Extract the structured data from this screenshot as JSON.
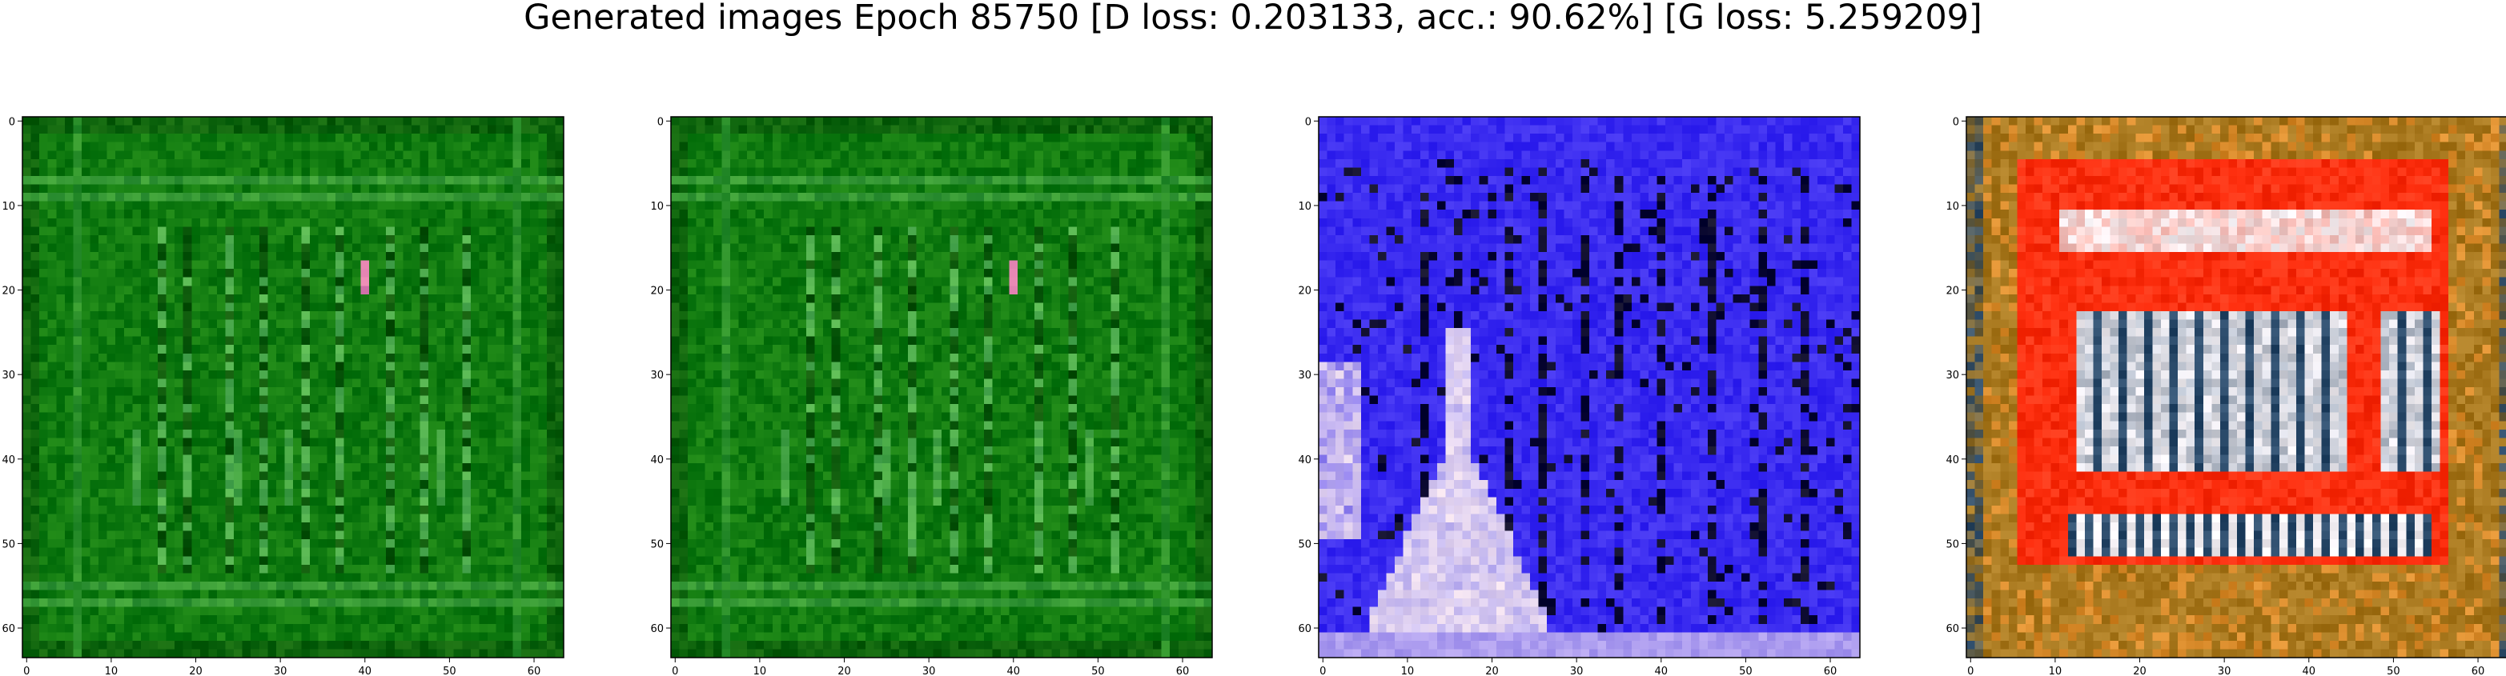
{
  "figure": {
    "title": "Generated images Epoch 85750 [D loss: 0.203133, acc.: 90.62%] [G loss: 5.259209]"
  },
  "axes_ticks": {
    "x": [
      "0",
      "10",
      "20",
      "30",
      "40",
      "50",
      "60"
    ],
    "y": [
      "0",
      "10",
      "20",
      "30",
      "40",
      "50",
      "60"
    ],
    "x_values": [
      0,
      10,
      20,
      30,
      40,
      50,
      60
    ],
    "y_values": [
      0,
      10,
      20,
      30,
      40,
      50,
      60
    ],
    "pixel_extent": 64
  },
  "panels": [
    {
      "name": "generated-image-1",
      "dominant_color": "#1f8a1f",
      "motif": "green-grid-stripes",
      "colors": [
        "#107a10",
        "#2fa52f",
        "#063f06",
        "#7ad07a",
        "#e080b0"
      ]
    },
    {
      "name": "generated-image-2",
      "dominant_color": "#1d881d",
      "motif": "green-grid-stripes",
      "colors": [
        "#107a10",
        "#2fa52f",
        "#063f06",
        "#7ad07a",
        "#e080b0"
      ]
    },
    {
      "name": "generated-image-3",
      "dominant_color": "#3a2bf0",
      "motif": "blue-field-white-figure",
      "colors": [
        "#3a2bf0",
        "#2418c8",
        "#0a0830",
        "#e8d8ee",
        "#8a86f8"
      ]
    },
    {
      "name": "generated-image-4",
      "dominant_color": "#b07a1a",
      "motif": "red-frame-white-bars",
      "colors": [
        "#a8781e",
        "#ff3010",
        "#f4f0f4",
        "#2a4a6a",
        "#d88a2a"
      ]
    }
  ]
}
